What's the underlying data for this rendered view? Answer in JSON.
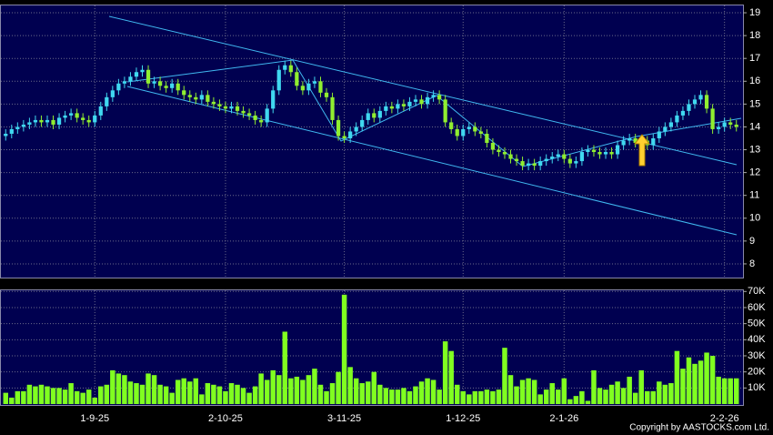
{
  "chart_data": {
    "type": "candlestick",
    "categories": [
      null,
      null,
      null,
      null,
      null,
      null,
      null,
      null,
      null,
      null,
      null,
      null,
      null,
      null,
      null,
      "1-9-25",
      null,
      null,
      null,
      null,
      null,
      null,
      null,
      null,
      null,
      null,
      null,
      null,
      null,
      null,
      null,
      null,
      null,
      null,
      null,
      null,
      null,
      "2-10-25",
      null,
      null,
      null,
      null,
      null,
      null,
      null,
      null,
      null,
      null,
      null,
      null,
      null,
      null,
      null,
      null,
      null,
      null,
      null,
      "3-11-25",
      null,
      null,
      null,
      null,
      null,
      null,
      null,
      null,
      null,
      null,
      null,
      null,
      null,
      null,
      null,
      null,
      null,
      null,
      null,
      "1-12-25",
      null,
      null,
      null,
      null,
      null,
      null,
      null,
      null,
      null,
      null,
      null,
      null,
      null,
      null,
      null,
      null,
      "2-1-26",
      null,
      null,
      null,
      null,
      null,
      null,
      null,
      null,
      null,
      null,
      null,
      null,
      null,
      null,
      null,
      null,
      null,
      null,
      null,
      null,
      null,
      null,
      null,
      null,
      null,
      null,
      "2-2-26",
      null,
      null
    ],
    "open": [
      13.6,
      13.7,
      13.9,
      14.0,
      14.1,
      14.2,
      14.3,
      14.2,
      14.3,
      14.1,
      14.4,
      14.5,
      14.6,
      14.4,
      14.3,
      14.2,
      14.5,
      14.9,
      15.3,
      15.6,
      15.9,
      16.0,
      16.2,
      16.4,
      16.5,
      15.9,
      16.0,
      15.8,
      15.7,
      15.9,
      15.6,
      15.4,
      15.3,
      15.2,
      15.4,
      15.1,
      15.0,
      14.9,
      14.8,
      14.9,
      14.7,
      14.6,
      14.5,
      14.3,
      14.2,
      14.8,
      15.6,
      16.5,
      16.7,
      16.4,
      15.8,
      15.6,
      15.9,
      16.0,
      15.5,
      15.3,
      14.3,
      13.6,
      13.5,
      13.8,
      14.0,
      14.3,
      14.6,
      14.4,
      14.7,
      14.9,
      14.8,
      15.0,
      14.9,
      15.1,
      15.2,
      15.0,
      15.3,
      15.4,
      15.2,
      14.2,
      13.9,
      13.6,
      13.9,
      14.0,
      13.8,
      13.7,
      13.3,
      13.0,
      12.9,
      12.8,
      12.6,
      12.5,
      12.3,
      12.4,
      12.3,
      12.5,
      12.6,
      12.7,
      12.8,
      12.6,
      12.4,
      12.5,
      12.9,
      13.0,
      12.9,
      12.8,
      12.9,
      12.8,
      13.2,
      13.4,
      13.5,
      13.3,
      13.4,
      13.2,
      13.5,
      13.8,
      14.0,
      14.2,
      14.5,
      14.7,
      15.0,
      15.2,
      15.4,
      14.8,
      13.9,
      14.0,
      14.2,
      14.1
    ],
    "high": [
      13.9,
      14.1,
      14.2,
      14.3,
      14.4,
      14.5,
      14.5,
      14.5,
      14.5,
      14.6,
      14.7,
      14.8,
      14.8,
      14.6,
      14.5,
      14.7,
      15.1,
      15.5,
      15.8,
      16.1,
      16.2,
      16.4,
      16.6,
      16.7,
      16.7,
      16.2,
      16.2,
      16.0,
      16.1,
      16.1,
      15.8,
      15.6,
      15.5,
      15.6,
      15.6,
      15.3,
      15.2,
      15.1,
      15.1,
      15.1,
      14.9,
      14.8,
      14.7,
      14.5,
      15.0,
      15.8,
      16.7,
      16.9,
      16.9,
      16.6,
      16.0,
      16.1,
      16.2,
      16.2,
      15.7,
      15.5,
      14.5,
      13.8,
      14.0,
      14.2,
      14.5,
      14.8,
      14.8,
      14.9,
      15.1,
      15.1,
      15.2,
      15.2,
      15.3,
      15.4,
      15.4,
      15.5,
      15.6,
      15.6,
      15.4,
      14.4,
      14.1,
      14.1,
      14.2,
      14.2,
      14.0,
      13.9,
      13.5,
      13.2,
      13.1,
      13.0,
      12.8,
      12.7,
      12.6,
      12.6,
      12.7,
      12.8,
      12.9,
      13.0,
      13.0,
      12.8,
      12.7,
      13.1,
      13.2,
      13.2,
      13.1,
      13.1,
      13.1,
      13.4,
      13.6,
      13.7,
      13.7,
      13.6,
      13.6,
      13.7,
      14.0,
      14.2,
      14.4,
      14.7,
      14.9,
      15.2,
      15.4,
      15.6,
      15.6,
      15.0,
      14.2,
      14.4,
      14.4,
      14.3
    ],
    "low": [
      13.4,
      13.5,
      13.7,
      13.8,
      13.9,
      14.0,
      14.0,
      14.0,
      13.9,
      13.9,
      14.2,
      14.3,
      14.2,
      14.1,
      14.0,
      14.0,
      14.3,
      14.7,
      15.1,
      15.4,
      15.7,
      15.8,
      16.0,
      16.2,
      15.7,
      15.7,
      15.6,
      15.5,
      15.5,
      15.4,
      15.2,
      15.1,
      15.0,
      15.0,
      14.9,
      14.8,
      14.7,
      14.6,
      14.6,
      14.5,
      14.4,
      14.3,
      14.1,
      14.0,
      14.0,
      14.6,
      15.4,
      16.3,
      16.2,
      15.6,
      15.4,
      15.4,
      15.7,
      15.3,
      15.1,
      14.1,
      13.4,
      13.3,
      13.3,
      13.6,
      13.8,
      14.1,
      14.2,
      14.2,
      14.5,
      14.6,
      14.6,
      14.7,
      14.7,
      14.9,
      14.8,
      14.8,
      15.1,
      15.0,
      14.0,
      13.7,
      13.4,
      13.4,
      13.7,
      13.6,
      13.5,
      13.1,
      12.8,
      12.7,
      12.6,
      12.4,
      12.3,
      12.1,
      12.1,
      12.1,
      12.1,
      12.3,
      12.4,
      12.5,
      12.4,
      12.2,
      12.2,
      12.3,
      12.7,
      12.7,
      12.6,
      12.6,
      12.6,
      12.6,
      13.0,
      13.2,
      13.1,
      13.1,
      13.0,
      13.0,
      13.3,
      13.6,
      13.8,
      14.0,
      14.3,
      14.5,
      14.8,
      15.0,
      14.6,
      13.7,
      13.7,
      13.8,
      13.9,
      13.8
    ],
    "close": [
      13.7,
      13.9,
      14.0,
      14.1,
      14.2,
      14.3,
      14.2,
      14.3,
      14.1,
      14.4,
      14.5,
      14.6,
      14.4,
      14.3,
      14.2,
      14.5,
      14.9,
      15.3,
      15.6,
      15.9,
      16.0,
      16.2,
      16.4,
      16.5,
      15.9,
      16.0,
      15.8,
      15.7,
      15.9,
      15.6,
      15.4,
      15.3,
      15.2,
      15.4,
      15.1,
      15.0,
      14.9,
      14.8,
      14.9,
      14.7,
      14.6,
      14.5,
      14.3,
      14.2,
      14.8,
      15.6,
      16.5,
      16.7,
      16.4,
      15.8,
      15.6,
      15.9,
      16.0,
      15.5,
      15.3,
      14.3,
      13.6,
      13.5,
      13.8,
      14.0,
      14.3,
      14.6,
      14.4,
      14.7,
      14.9,
      14.8,
      15.0,
      14.9,
      15.1,
      15.2,
      15.0,
      15.3,
      15.4,
      15.2,
      14.2,
      13.9,
      13.6,
      13.9,
      14.0,
      13.8,
      13.7,
      13.3,
      13.0,
      12.9,
      12.8,
      12.6,
      12.5,
      12.3,
      12.4,
      12.3,
      12.5,
      12.6,
      12.7,
      12.8,
      12.6,
      12.4,
      12.5,
      12.9,
      13.0,
      12.9,
      12.8,
      12.9,
      12.8,
      13.2,
      13.4,
      13.5,
      13.3,
      13.4,
      13.2,
      13.5,
      13.8,
      14.0,
      14.2,
      14.5,
      14.7,
      15.0,
      15.2,
      15.4,
      14.8,
      13.9,
      14.0,
      14.2,
      14.1,
      14.0
    ],
    "volume": [
      7000,
      4000,
      8000,
      8000,
      12000,
      11000,
      12000,
      11000,
      10000,
      10000,
      9000,
      13000,
      8000,
      7000,
      9000,
      4000,
      11000,
      12000,
      21000,
      19000,
      18000,
      14000,
      13000,
      12000,
      19000,
      18000,
      12000,
      11000,
      7000,
      15000,
      16000,
      14000,
      16000,
      6000,
      13000,
      12000,
      11000,
      8000,
      13000,
      12000,
      10000,
      7000,
      11000,
      19000,
      15000,
      21000,
      18000,
      45000,
      16000,
      17000,
      15000,
      18000,
      22000,
      12000,
      8000,
      13000,
      20000,
      68000,
      23000,
      16000,
      13000,
      14000,
      20000,
      12000,
      10000,
      9000,
      9000,
      10000,
      8000,
      11000,
      14000,
      16000,
      15000,
      9000,
      39000,
      33000,
      12000,
      8000,
      6000,
      8000,
      8000,
      9000,
      8000,
      9000,
      35000,
      18000,
      11000,
      15000,
      16000,
      15000,
      6000,
      9000,
      13000,
      9000,
      16000,
      3000,
      5000,
      8000,
      2000,
      21000,
      10000,
      9000,
      12000,
      14000,
      10000,
      17000,
      7000,
      21000,
      8000,
      8000,
      14000,
      12000,
      13000,
      33000,
      22000,
      29000,
      25000,
      27000,
      32000,
      30000,
      17000,
      16000,
      16000,
      16000
    ],
    "ylim": [
      7.36,
      19.36
    ],
    "yticks": [
      8,
      9,
      10,
      11,
      12,
      13,
      14,
      15,
      16,
      17,
      18,
      19
    ],
    "volume_ylim": [
      0,
      71300
    ],
    "volume_yticks": [
      {
        "value": 10000,
        "label": "10K"
      },
      {
        "value": 20000,
        "label": "20K"
      },
      {
        "value": 30000,
        "label": "30K"
      },
      {
        "value": 40000,
        "label": "40K"
      },
      {
        "value": 50000,
        "label": "50K"
      },
      {
        "value": 60000,
        "label": "60K"
      },
      {
        "value": 70000,
        "label": "70K"
      }
    ],
    "up_color": "#40d8f0",
    "down_color": "#90ee30",
    "volume_color": "#80ff20",
    "grid": true,
    "copyright": "Copyright by AASTOCKS.com Ltd."
  }
}
